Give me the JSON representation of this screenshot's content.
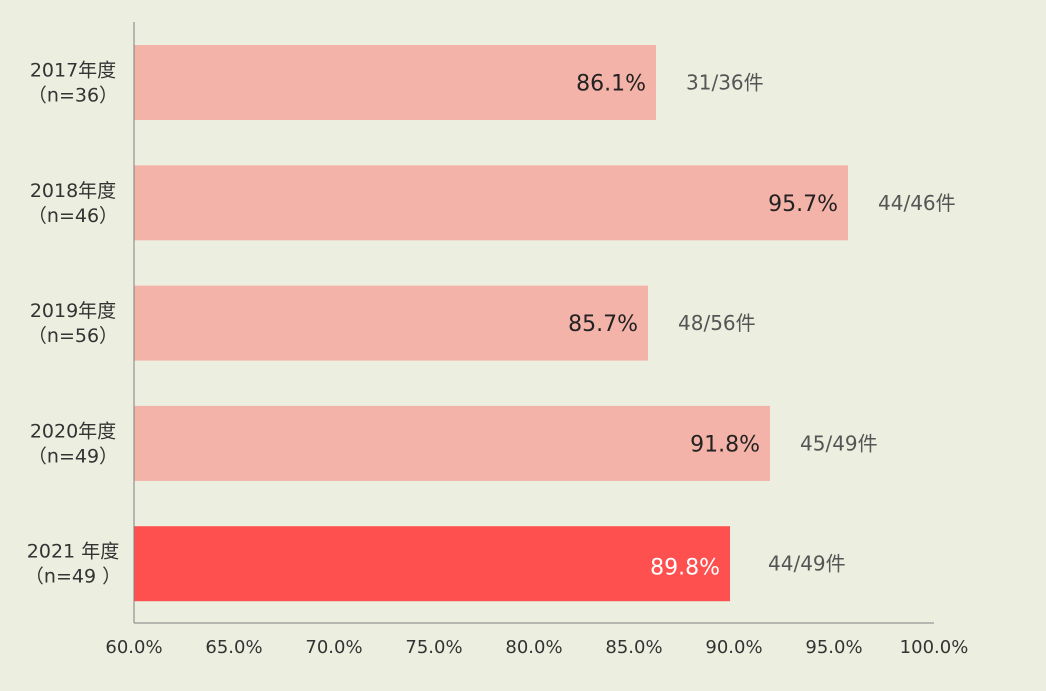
{
  "chart_data": {
    "type": "bar",
    "orientation": "horizontal",
    "categories": [
      {
        "line1": "2017年度",
        "line2": "（n=36）"
      },
      {
        "line1": "2018年度",
        "line2": "（n=46）"
      },
      {
        "line1": "2019年度",
        "line2": "（n=56）"
      },
      {
        "line1": "2020年度",
        "line2": "（n=49）"
      },
      {
        "line1": "2021 年度",
        "line2": "（n=49 ）"
      }
    ],
    "values": [
      86.1,
      95.7,
      85.7,
      91.8,
      89.8
    ],
    "value_labels": [
      "86.1%",
      "95.7%",
      "85.7%",
      "91.8%",
      "89.8%"
    ],
    "count_labels": [
      "31/36件",
      "44/46件",
      "48/56件",
      "45/49件",
      "44/49件"
    ],
    "highlight_index": 4,
    "xlim": [
      60,
      100
    ],
    "x_ticks": [
      "60.0%",
      "65.0%",
      "70.0%",
      "75.0%",
      "80.0%",
      "85.0%",
      "90.0%",
      "95.0%",
      "100.0%"
    ],
    "grid": false,
    "colors": {
      "bar": "#f4b3a8",
      "bar_highlight": "#ff5050",
      "value_label": "#222222",
      "value_label_highlight": "#ffffff",
      "count_label": "#555555"
    }
  }
}
